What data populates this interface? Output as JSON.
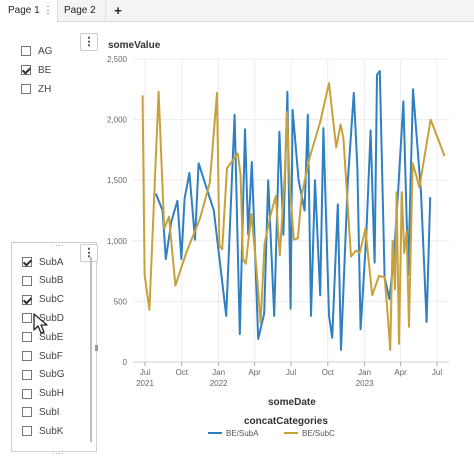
{
  "tabs": {
    "page1_label": "Page 1",
    "page1_menu": "⋮",
    "page2_label": "Page 2",
    "add_label": "+"
  },
  "region_filter": {
    "menu_label": "⋮",
    "items": [
      {
        "label": "AG",
        "checked": false
      },
      {
        "label": "BE",
        "checked": true
      },
      {
        "label": "ZH",
        "checked": false
      }
    ]
  },
  "subcategory_filter": {
    "menu_label": "⋮",
    "grip": "....",
    "items": [
      {
        "label": "SubA",
        "checked": true
      },
      {
        "label": "SubB",
        "checked": false
      },
      {
        "label": "SubC",
        "checked": true
      },
      {
        "label": "SubD",
        "checked": false
      },
      {
        "label": "SubE",
        "checked": false
      },
      {
        "label": "SubF",
        "checked": false
      },
      {
        "label": "SubG",
        "checked": false
      },
      {
        "label": "SubH",
        "checked": false
      },
      {
        "label": "SubI",
        "checked": false
      },
      {
        "label": "SubK",
        "checked": false
      }
    ]
  },
  "chart": {
    "menu_label": "⋮",
    "ylabel": "someValue",
    "xlabel": "someDate",
    "legend_title": "concatCategories"
  },
  "chart_data": {
    "type": "line",
    "title": "",
    "xlabel": "someDate",
    "ylabel": "someValue",
    "ylim": [
      0,
      2500
    ],
    "xlim": [
      "2021-06-01",
      "2023-07-31"
    ],
    "y_ticks": [
      "0",
      "500",
      "1,000",
      "1,500",
      "2,000",
      "2,500"
    ],
    "x_ticks": [
      {
        "date": "2021-07-01",
        "label": "Jul",
        "sub": "2021"
      },
      {
        "date": "2021-10-01",
        "label": "Oct",
        "sub": ""
      },
      {
        "date": "2022-01-01",
        "label": "Jan",
        "sub": "2022"
      },
      {
        "date": "2022-04-01",
        "label": "Apr",
        "sub": ""
      },
      {
        "date": "2022-07-01",
        "label": "Jul",
        "sub": ""
      },
      {
        "date": "2022-10-01",
        "label": "Oct",
        "sub": ""
      },
      {
        "date": "2023-01-01",
        "label": "Jan",
        "sub": "2023"
      },
      {
        "date": "2023-04-01",
        "label": "Apr",
        "sub": ""
      },
      {
        "date": "2023-07-01",
        "label": "Jul",
        "sub": ""
      }
    ],
    "grid": true,
    "legend_position": "bottom",
    "series": [
      {
        "name": "BE/SubA",
        "color": "#2f7fc1",
        "points": [
          [
            "2021-07-28",
            1390
          ],
          [
            "2021-08-14",
            1250
          ],
          [
            "2021-08-22",
            850
          ],
          [
            "2021-09-05",
            1160
          ],
          [
            "2021-09-20",
            1330
          ],
          [
            "2021-09-30",
            850
          ],
          [
            "2021-10-08",
            1350
          ],
          [
            "2021-10-20",
            1560
          ],
          [
            "2021-11-03",
            1010
          ],
          [
            "2021-11-12",
            1640
          ],
          [
            "2021-12-20",
            1250
          ],
          [
            "2022-01-20",
            380
          ],
          [
            "2022-02-10",
            2040
          ],
          [
            "2022-02-23",
            230
          ],
          [
            "2022-03-08",
            1920
          ],
          [
            "2022-03-16",
            1050
          ],
          [
            "2022-03-25",
            1650
          ],
          [
            "2022-04-10",
            190
          ],
          [
            "2022-04-25",
            400
          ],
          [
            "2022-05-05",
            1500
          ],
          [
            "2022-05-20",
            380
          ],
          [
            "2022-06-02",
            1900
          ],
          [
            "2022-06-12",
            1050
          ],
          [
            "2022-06-22",
            2230
          ],
          [
            "2022-06-30",
            440
          ],
          [
            "2022-07-05",
            2080
          ],
          [
            "2022-07-20",
            1500
          ],
          [
            "2022-08-04",
            1250
          ],
          [
            "2022-08-12",
            2040
          ],
          [
            "2022-08-20",
            380
          ],
          [
            "2022-08-30",
            1500
          ],
          [
            "2022-09-12",
            550
          ],
          [
            "2022-09-20",
            1930
          ],
          [
            "2022-10-04",
            380
          ],
          [
            "2022-10-12",
            200
          ],
          [
            "2022-10-26",
            1300
          ],
          [
            "2022-11-03",
            100
          ],
          [
            "2022-11-20",
            1490
          ],
          [
            "2022-12-05",
            2220
          ],
          [
            "2022-12-14",
            1600
          ],
          [
            "2022-12-22",
            270
          ],
          [
            "2023-01-05",
            1030
          ],
          [
            "2023-01-16",
            1910
          ],
          [
            "2023-01-26",
            820
          ],
          [
            "2023-02-01",
            2370
          ],
          [
            "2023-02-08",
            2400
          ],
          [
            "2023-02-20",
            700
          ],
          [
            "2023-03-04",
            520
          ],
          [
            "2023-03-15",
            860
          ],
          [
            "2023-03-26",
            1420
          ],
          [
            "2023-04-08",
            2150
          ],
          [
            "2023-04-20",
            720
          ],
          [
            "2023-05-02",
            2250
          ],
          [
            "2023-05-22",
            1400
          ],
          [
            "2023-06-05",
            330
          ],
          [
            "2023-06-14",
            1360
          ]
        ]
      },
      {
        "name": "BE/SubC",
        "color": "#c9a13a",
        "points": [
          [
            "2021-06-25",
            2200
          ],
          [
            "2021-06-30",
            720
          ],
          [
            "2021-07-12",
            430
          ],
          [
            "2021-08-04",
            2230
          ],
          [
            "2021-08-18",
            1100
          ],
          [
            "2021-08-30",
            1200
          ],
          [
            "2021-09-15",
            630
          ],
          [
            "2021-10-12",
            900
          ],
          [
            "2021-11-15",
            1180
          ],
          [
            "2021-12-10",
            1480
          ],
          [
            "2021-12-28",
            2220
          ],
          [
            "2022-01-03",
            960
          ],
          [
            "2022-01-10",
            930
          ],
          [
            "2022-01-22",
            1600
          ],
          [
            "2022-02-18",
            1720
          ],
          [
            "2022-02-25",
            1540
          ],
          [
            "2022-03-03",
            850
          ],
          [
            "2022-03-10",
            810
          ],
          [
            "2022-03-24",
            1220
          ],
          [
            "2022-04-06",
            760
          ],
          [
            "2022-04-16",
            320
          ],
          [
            "2022-04-26",
            980
          ],
          [
            "2022-05-10",
            1200
          ],
          [
            "2022-05-24",
            1370
          ],
          [
            "2022-06-03",
            880
          ],
          [
            "2022-06-15",
            1520
          ],
          [
            "2022-06-21",
            2060
          ],
          [
            "2022-06-28",
            1460
          ],
          [
            "2022-07-08",
            1010
          ],
          [
            "2022-07-18",
            1020
          ],
          [
            "2022-07-28",
            1380
          ],
          [
            "2022-08-16",
            1680
          ],
          [
            "2022-09-12",
            1980
          ],
          [
            "2022-10-04",
            2300
          ],
          [
            "2022-10-22",
            1770
          ],
          [
            "2022-11-02",
            1960
          ],
          [
            "2022-11-09",
            1850
          ],
          [
            "2022-11-28",
            870
          ],
          [
            "2022-12-10",
            920
          ],
          [
            "2022-12-20",
            900
          ],
          [
            "2023-01-03",
            1100
          ],
          [
            "2023-01-20",
            550
          ],
          [
            "2023-02-06",
            710
          ],
          [
            "2023-02-20",
            700
          ],
          [
            "2023-03-01",
            340
          ],
          [
            "2023-03-06",
            100
          ],
          [
            "2023-03-12",
            1000
          ],
          [
            "2023-03-18",
            600
          ],
          [
            "2023-03-22",
            1400
          ],
          [
            "2023-03-28",
            150
          ],
          [
            "2023-04-04",
            1400
          ],
          [
            "2023-04-10",
            900
          ],
          [
            "2023-04-16",
            1080
          ],
          [
            "2023-04-22",
            290
          ],
          [
            "2023-05-01",
            1640
          ],
          [
            "2023-05-10",
            1540
          ],
          [
            "2023-05-18",
            1440
          ],
          [
            "2023-06-02",
            1740
          ],
          [
            "2023-06-15",
            2000
          ],
          [
            "2023-07-20",
            1700
          ]
        ]
      }
    ]
  }
}
